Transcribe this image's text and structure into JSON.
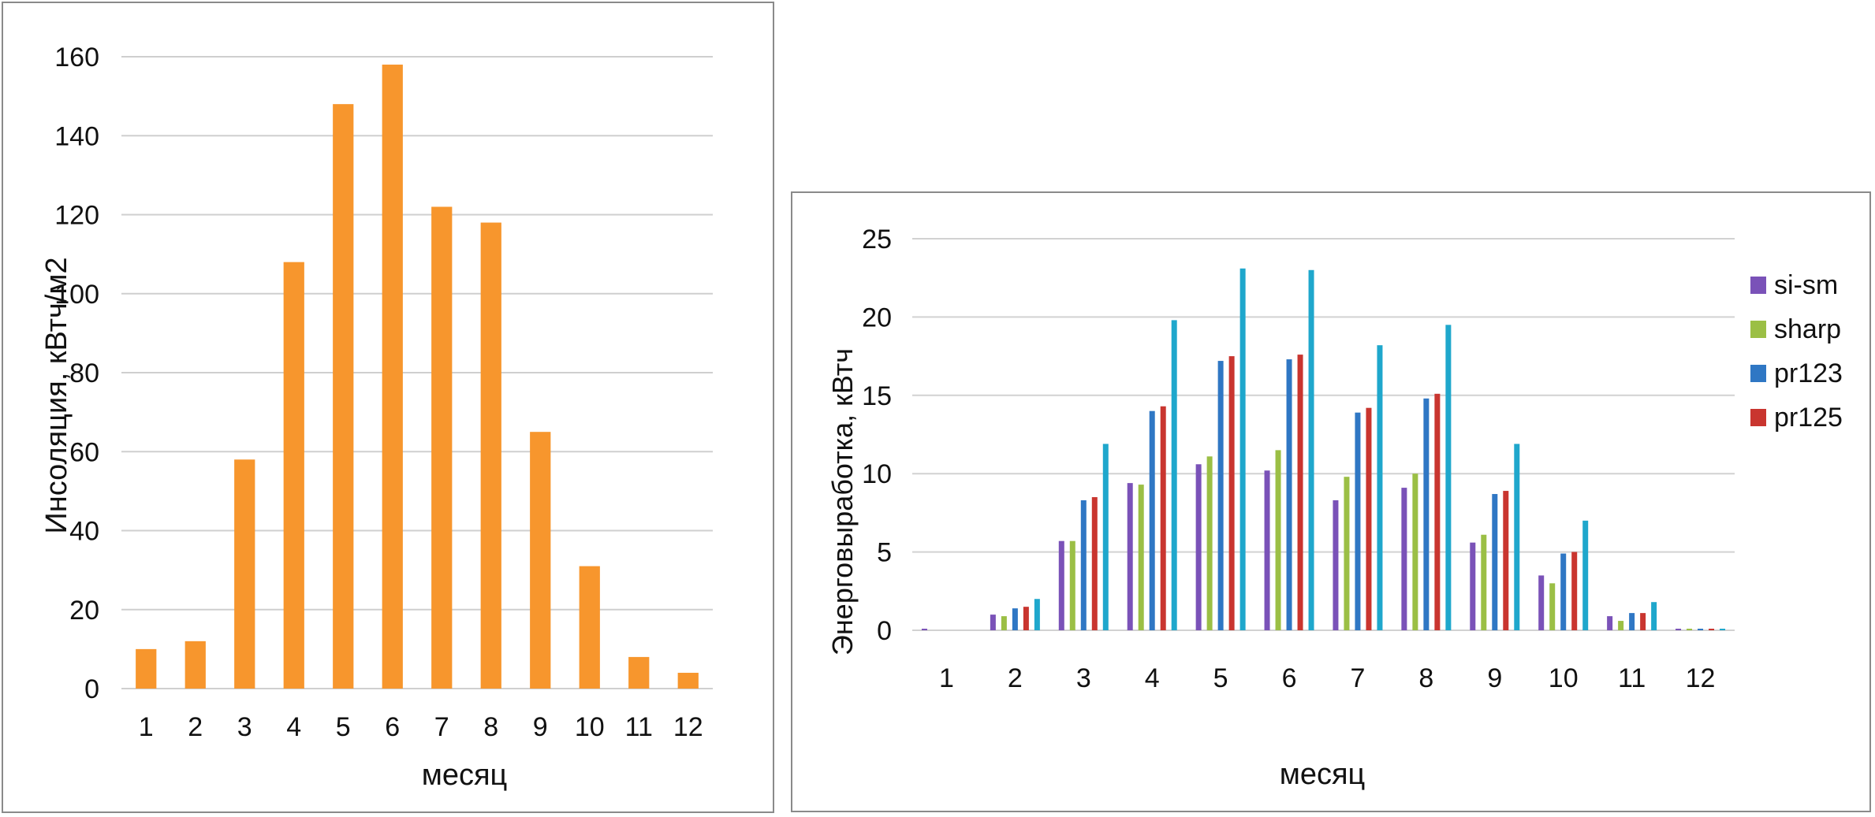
{
  "chart_data": [
    {
      "type": "bar",
      "categories": [
        "1",
        "2",
        "3",
        "4",
        "5",
        "6",
        "7",
        "8",
        "9",
        "10",
        "11",
        "12"
      ],
      "values": [
        10,
        12,
        58,
        108,
        148,
        158,
        122,
        118,
        65,
        31,
        8,
        4
      ],
      "xlabel": "месяц",
      "ylabel": "Инсоляция, кВтч/м2",
      "ylim": [
        0,
        160
      ],
      "yticks": [
        "0",
        "20",
        "40",
        "60",
        "80",
        "100",
        "120",
        "140",
        "160"
      ],
      "grid": true,
      "color": "#f7962d"
    },
    {
      "type": "bar",
      "categories": [
        "1",
        "2",
        "3",
        "4",
        "5",
        "6",
        "7",
        "8",
        "9",
        "10",
        "11",
        "12"
      ],
      "series": [
        {
          "name": "si-sm",
          "color": "#7a52b8",
          "values": [
            0.1,
            1.0,
            5.7,
            9.4,
            10.6,
            10.2,
            8.3,
            9.1,
            5.6,
            3.5,
            0.9,
            0.1
          ]
        },
        {
          "name": "sharp",
          "color": "#9bbf45",
          "values": [
            0.0,
            0.9,
            5.7,
            9.3,
            11.1,
            11.5,
            9.8,
            10.0,
            6.1,
            3.0,
            0.6,
            0.1
          ]
        },
        {
          "name": "pr123",
          "color": "#2f77c4",
          "values": [
            0.0,
            1.4,
            8.3,
            14.0,
            17.2,
            17.3,
            13.9,
            14.8,
            8.7,
            4.9,
            1.1,
            0.1
          ]
        },
        {
          "name": "pr125",
          "color": "#c9352f",
          "values": [
            0.0,
            1.5,
            8.5,
            14.3,
            17.5,
            17.6,
            14.2,
            15.1,
            8.9,
            5.0,
            1.1,
            0.1
          ]
        },
        {
          "name": "",
          "color": "#1fa7cc",
          "values": [
            0.0,
            2.0,
            11.9,
            19.8,
            23.1,
            23.0,
            18.2,
            19.5,
            11.9,
            7.0,
            1.8,
            0.1
          ]
        }
      ],
      "xlabel": "месяц",
      "ylabel": "Энерговыработка, кВтч",
      "ylim": [
        0,
        25
      ],
      "yticks": [
        "0",
        "5",
        "10",
        "15",
        "20",
        "25"
      ],
      "grid": true,
      "legend": "right"
    }
  ]
}
